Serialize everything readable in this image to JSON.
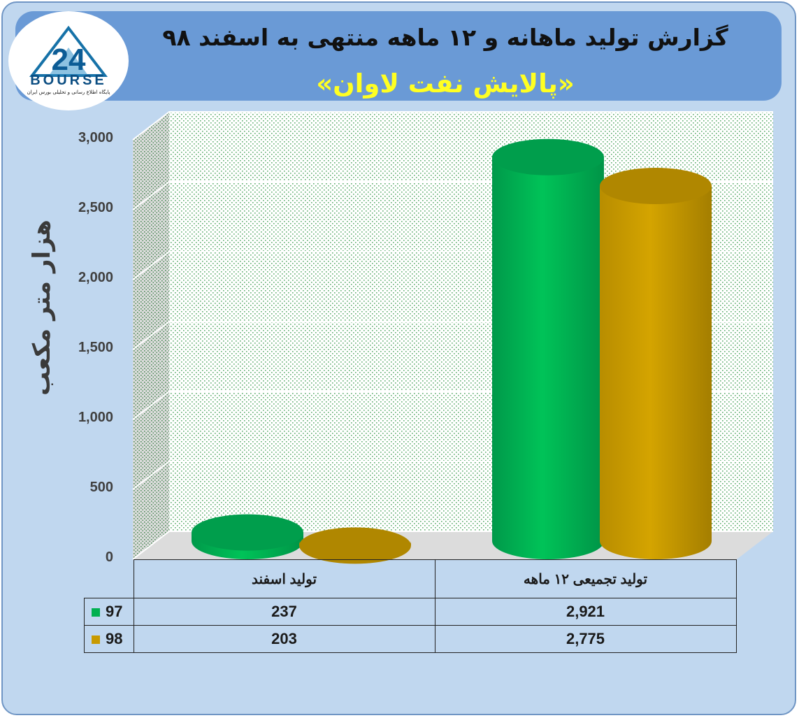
{
  "header": {
    "title": "گزارش تولید ماهانه و ۱۲ ماهه منتهی به اسفند ۹۸",
    "subtitle": "«پالایش نفت لاوان»"
  },
  "logo": {
    "mark": "24",
    "name": "BOURSE",
    "tagline": "پایگاه اطلاع رسانی و تحلیلی بورس ایران"
  },
  "chart_data": {
    "type": "bar",
    "ylabel": "هزار متر مکعب",
    "ylim": [
      0,
      3000
    ],
    "yticks": [
      "3,000",
      "2,500",
      "2,000",
      "1,500",
      "1,000",
      "500",
      "0"
    ],
    "categories": [
      "تولید اسفند",
      "تولید تجمیعی ۱۲ ماهه"
    ],
    "series": [
      {
        "name": "97",
        "color": "#00b050",
        "values": [
          237,
          2921
        ],
        "labels": [
          "237",
          "2,921"
        ]
      },
      {
        "name": "98",
        "color": "#c89a00",
        "values": [
          203,
          2775
        ],
        "labels": [
          "203",
          "2,775"
        ]
      }
    ],
    "grid": true,
    "legend": "table-left"
  }
}
